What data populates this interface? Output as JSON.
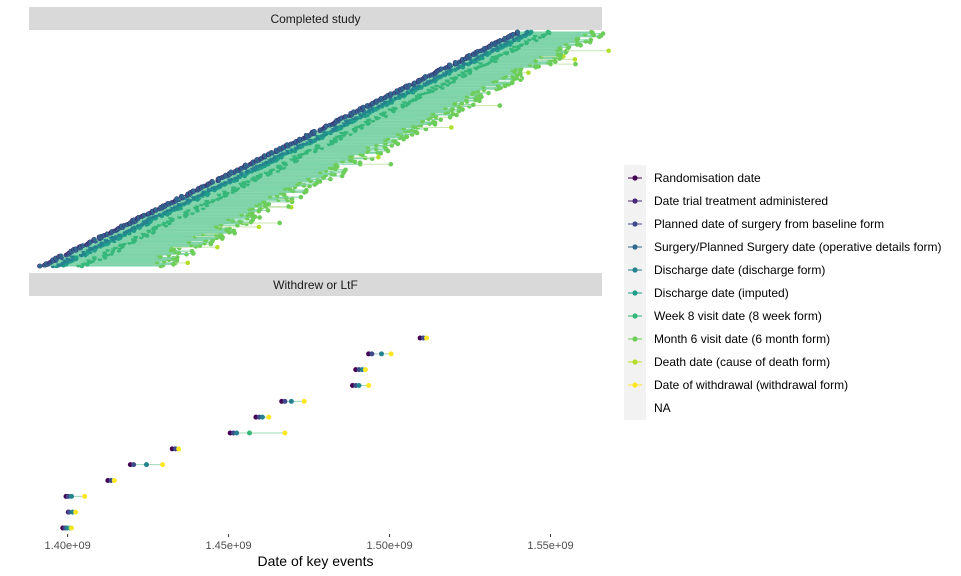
{
  "chart_data": {
    "type": "scatter",
    "xlabel": "Date of key events",
    "ylabel": "",
    "xlim": [
      1388000000.0,
      1566000000.0
    ],
    "x_ticks": [
      {
        "value": 1400000000.0,
        "label": "1.40e+09"
      },
      {
        "value": 1450000000.0,
        "label": "1.45e+09"
      },
      {
        "value": 1500000000.0,
        "label": "1.50e+09"
      },
      {
        "value": 1550000000.0,
        "label": "1.55e+09"
      }
    ],
    "grid": false,
    "legend_position": "right",
    "legend": [
      {
        "label": "Randomisation date",
        "color": "#440154"
      },
      {
        "label": "Date trial treatment administered",
        "color": "#482878"
      },
      {
        "label": "Planned date of surgery from baseline form",
        "color": "#3E4A89"
      },
      {
        "label": "Surgery/Planned Surgery date (operative details form)",
        "color": "#31688E"
      },
      {
        "label": "Discharge date (discharge form)",
        "color": "#26828E"
      },
      {
        "label": "Discharge date (imputed)",
        "color": "#1F9E89"
      },
      {
        "label": "Week 8 visit date (8 week form)",
        "color": "#35B779"
      },
      {
        "label": "Month 6 visit date (6 month form)",
        "color": "#6DCD59"
      },
      {
        "label": "Death date (cause of death form)",
        "color": "#B4DE2C"
      },
      {
        "label": "Date of withdrawal (withdrawal form)",
        "color": "#FDE725"
      },
      {
        "label": "NA",
        "color": null
      }
    ],
    "panels": [
      {
        "title": "Completed study",
        "band": {
          "start": [
            1392000000.0,
            1540000000.0
          ],
          "end": [
            1427000000.0,
            1565000000.0
          ],
          "note_events": "approx. 2000 participants, each row spanning randomisation to month 6 visit"
        }
      },
      {
        "title": "Withdrew or LtF",
        "participants": [
          {
            "events": [
              1398500000.0,
              1399200000.0,
              1399800000.0,
              1400800000.0,
              1401200000.0
            ]
          },
          {
            "events": [
              1400200000.0,
              1400400000.0,
              1401500000.0,
              1402500000.0
            ]
          },
          {
            "events": [
              1399500000.0,
              1400200000.0,
              1401200000.0,
              1405300000.0
            ]
          },
          {
            "events": [
              1412500000.0,
              1413500000.0,
              1414500000.0
            ]
          },
          {
            "events": [
              1419500000.0,
              1420500000.0,
              1424500000.0,
              1429500000.0
            ]
          },
          {
            "events": [
              1432500000.0,
              1433500000.0,
              1434500000.0
            ]
          },
          {
            "events": [
              1450500000.0,
              1451500000.0,
              1452500000.0,
              1456500000.0,
              1467500000.0
            ]
          },
          {
            "events": [
              1458500000.0,
              1459500000.0,
              1460500000.0,
              1462500000.0
            ]
          },
          {
            "events": [
              1466500000.0,
              1467500000.0,
              1469500000.0,
              1473500000.0
            ]
          },
          {
            "events": [
              1488500000.0,
              1489500000.0,
              1490500000.0,
              1493500000.0
            ]
          },
          {
            "events": [
              1489500000.0,
              1490500000.0,
              1491500000.0,
              1492500000.0
            ]
          },
          {
            "events": [
              1493500000.0,
              1494500000.0,
              1497500000.0,
              1500500000.0
            ]
          },
          {
            "events": [
              1509500000.0,
              1510500000.0,
              1511500000.0
            ]
          }
        ]
      }
    ]
  }
}
